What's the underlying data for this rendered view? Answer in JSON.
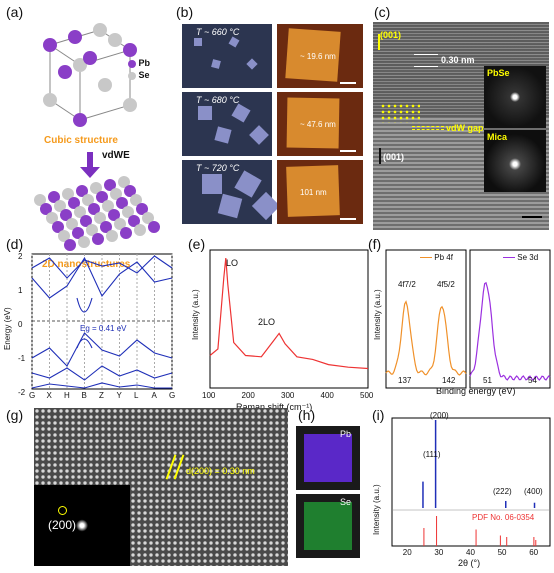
{
  "panel_labels": [
    "(a)",
    "(b)",
    "(c)",
    "(d)",
    "(e)",
    "(f)",
    "(g)",
    "(h)",
    "(i)"
  ],
  "a": {
    "legend": {
      "pb": "Pb",
      "se": "Se"
    },
    "top_label": "Cubic structure",
    "arrow_label": "vdWE",
    "bottom_label": "2D nanostructures",
    "colors": {
      "pb": "#8a3ec7",
      "se": "#c8c8c8",
      "accent": "#f59a1c",
      "arrow": "#7b2fbf"
    }
  },
  "b": {
    "temps": [
      "T ~ 660 °C",
      "T ~ 680 °C",
      "T ~ 720 °C"
    ],
    "heights": [
      "~ 19.6 nm",
      "~ 47.6 nm",
      "101 nm"
    ]
  },
  "c": {
    "dir_top": "(001)",
    "spacing": "0.30 nm",
    "gap": "vdW gap",
    "dir_bottom": "(001)",
    "inset_top": "PbSe",
    "inset_bottom": "Mica"
  },
  "d": {
    "ylabel": "Energy (eV)",
    "yticks": [
      "2",
      "1",
      "0",
      "-1",
      "-2"
    ],
    "xticks": [
      "G",
      "X",
      "H",
      "B",
      "Z",
      "Y",
      "L",
      "A",
      "G"
    ],
    "gap_label": "Eg = 0.41 eV"
  },
  "e": {
    "ylabel": "Intensity (a.u.)",
    "xlabel": "Raman shift (cm⁻¹)",
    "xticks": [
      "100",
      "200",
      "300",
      "400",
      "500"
    ],
    "peak1": "LO",
    "peak2": "2LO"
  },
  "f": {
    "ylabel": "Intensity (a.u.)",
    "xlabel": "Binding energy (eV)",
    "legend1": "Pb 4f",
    "legend2": "Se 3d",
    "peak1": "4f7/2",
    "peak2": "4f5/2",
    "xticks_left": [
      "137",
      "142"
    ],
    "xticks_right": [
      "51",
      "54"
    ]
  },
  "g": {
    "spot": "(200)",
    "spacing": "d(200) = 0.30 nm"
  },
  "h": {
    "pb": "Pb",
    "se": "Se"
  },
  "i": {
    "ylabel": "Intensity (a.u.)",
    "xlabel": "2θ (°)",
    "xticks": [
      "20",
      "30",
      "40",
      "50",
      "60"
    ],
    "peaks": [
      "(111)",
      "(200)",
      "(222)",
      "(400)"
    ],
    "pdf": "PDF No. 06-0354"
  },
  "chart_data": [
    {
      "type": "line",
      "title": "",
      "xlabel": "Raman shift (cm⁻¹)",
      "ylabel": "Intensity (a.u.)",
      "xlim": [
        100,
        500
      ],
      "x": [
        100,
        120,
        135,
        140,
        145,
        160,
        190,
        230,
        260,
        275,
        290,
        320,
        360,
        400,
        450,
        500
      ],
      "values": [
        0.25,
        0.3,
        0.85,
        1.0,
        0.8,
        0.35,
        0.25,
        0.24,
        0.36,
        0.42,
        0.34,
        0.24,
        0.22,
        0.18,
        0.16,
        0.15
      ]
    },
    {
      "type": "line",
      "title": "",
      "xlabel": "2θ (°)",
      "ylabel": "Intensity (a.u.)",
      "xlim": [
        15,
        65
      ],
      "series": [
        {
          "name": "",
          "x": [
            24.8,
            28.8,
            51.0,
            60.1
          ],
          "values": [
            0.3,
            1.0,
            0.08,
            0.06
          ]
        },
        {
          "name": "PDF No. 06-0354",
          "x": [
            25.1,
            29.1,
            41.6,
            49.3,
            51.3,
            59.9,
            60.5
          ],
          "values": [
            0.6,
            1.0,
            0.55,
            0.35,
            0.3,
            0.3,
            0.2
          ]
        }
      ]
    }
  ]
}
